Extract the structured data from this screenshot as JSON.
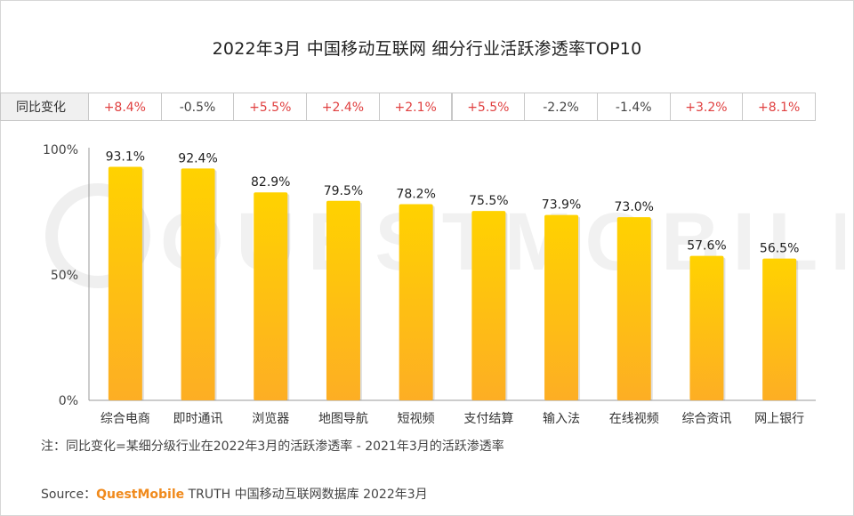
{
  "title": "2022年3月 中国移动互联网 细分行业活跃渗透率TOP10",
  "change_label": "同比变化",
  "changes": [
    "+8.4%",
    "-0.5%",
    "+5.5%",
    "+2.4%",
    "+2.1%",
    "+5.5%",
    "-2.2%",
    "-1.4%",
    "+3.2%",
    "+8.1%"
  ],
  "watermark_text": "QUESTMOBILE",
  "note": "注：同比变化=某细分级行业在2022年3月的活跃渗透率 - 2021年3月的活跃渗透率",
  "source": {
    "prefix": "Source：",
    "brand": "QuestMobile",
    "rest": " TRUTH 中国移动互联网数据库 2022年3月"
  },
  "colors": {
    "bar_top": "#ffd200",
    "bar_bottom": "#fdae24",
    "positive": "#e04040",
    "negative": "#444444",
    "brand": "#f08a1c"
  },
  "chart_data": {
    "type": "bar",
    "title": "2022年3月 中国移动互联网 细分行业活跃渗透率TOP10",
    "categories": [
      "综合电商",
      "即时通讯",
      "浏览器",
      "地图导航",
      "短视频",
      "支付结算",
      "输入法",
      "在线视频",
      "综合资讯",
      "网上银行"
    ],
    "values": [
      93.1,
      92.4,
      82.9,
      79.5,
      78.2,
      75.5,
      73.9,
      73.0,
      57.6,
      56.5
    ],
    "value_labels": [
      "93.1%",
      "92.4%",
      "82.9%",
      "79.5%",
      "78.2%",
      "75.5%",
      "73.9%",
      "73.0%",
      "57.6%",
      "56.5%"
    ],
    "yticks": [
      "0%",
      "50%",
      "100%"
    ],
    "ytick_values": [
      0,
      50,
      100
    ],
    "ylim": [
      0,
      100
    ],
    "xlabel": "",
    "ylabel": "",
    "grid": false,
    "legend": "none"
  }
}
